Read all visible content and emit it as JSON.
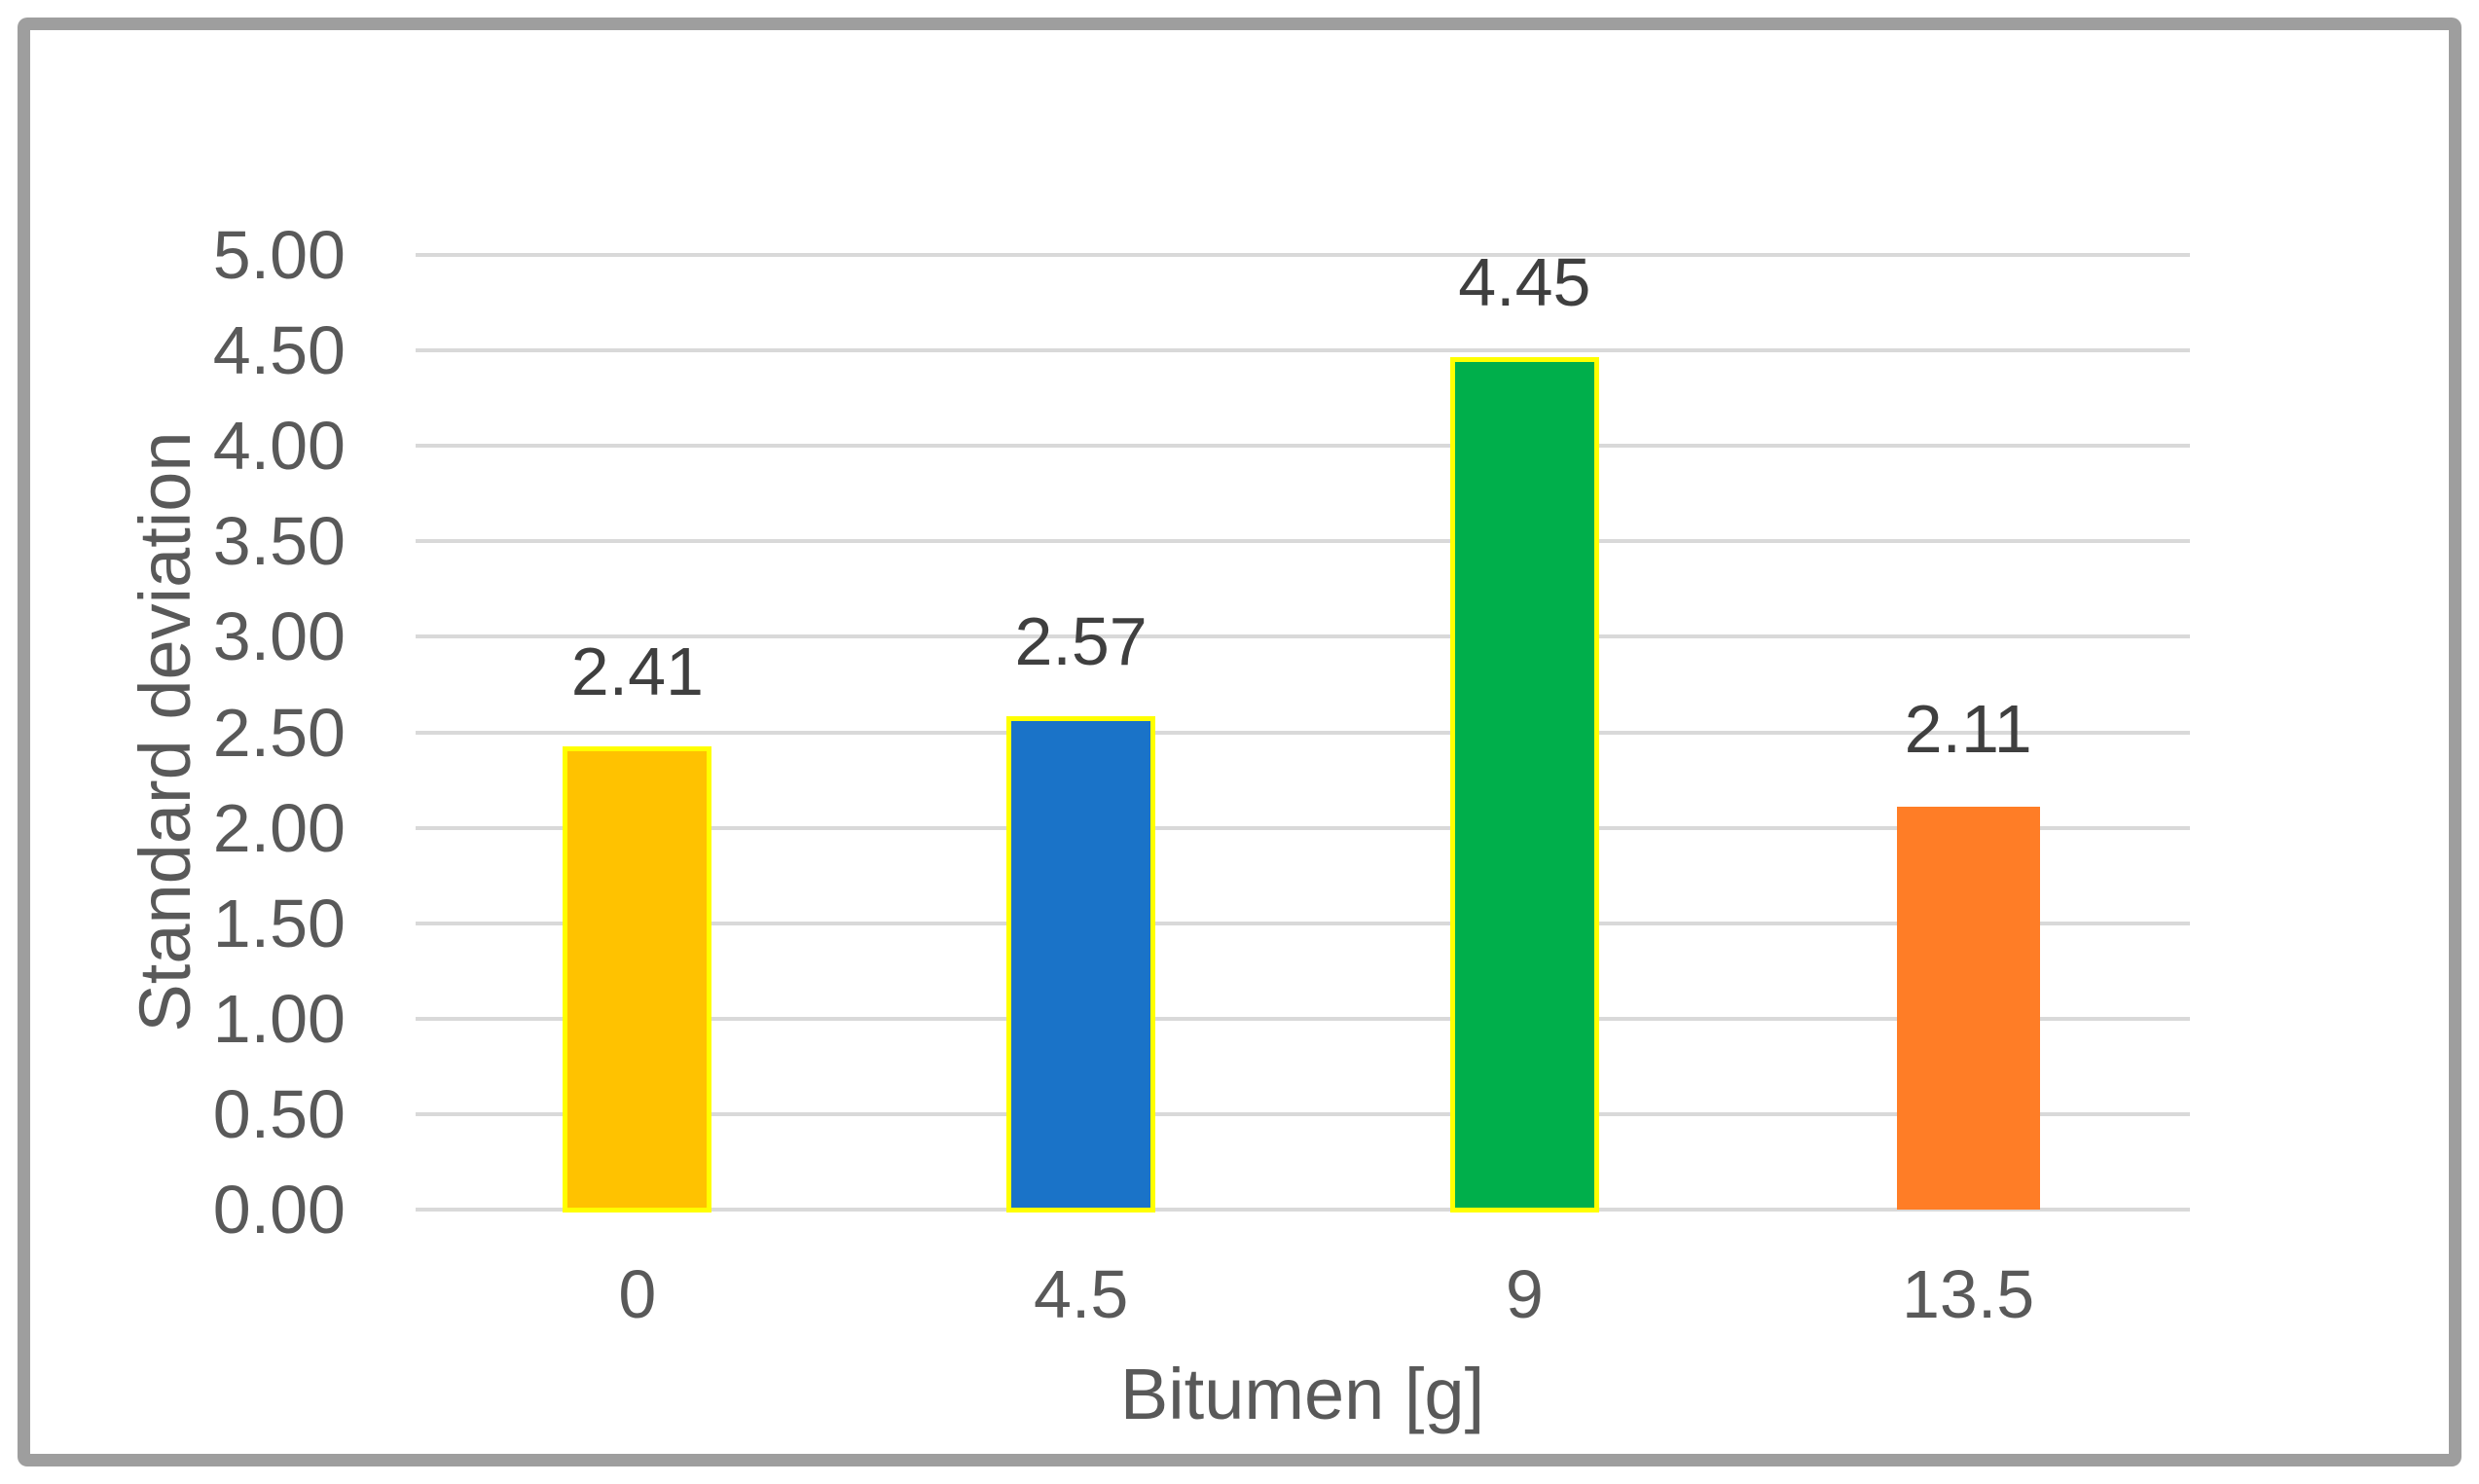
{
  "chart_data": {
    "type": "bar",
    "title": "",
    "categories": [
      "0",
      "4.5",
      "9",
      "13.5"
    ],
    "values": [
      2.41,
      2.57,
      4.45,
      2.11
    ],
    "data_labels": [
      "2.41",
      "2.57",
      "4.45",
      "2.11"
    ],
    "xlabel": "Bitumen [g]",
    "ylabel": "Standard deviation",
    "ylim": [
      0,
      5
    ],
    "ytick_interval": 0.5,
    "yticks": [
      "0.00",
      "0.50",
      "1.00",
      "1.50",
      "2.00",
      "2.50",
      "3.00",
      "3.50",
      "4.00",
      "4.50",
      "5.00"
    ],
    "ytick_values": [
      0,
      0.5,
      1,
      1.5,
      2,
      2.5,
      3,
      3.5,
      4,
      4.5,
      5
    ],
    "grid": true,
    "legend": false,
    "bar_fill_colors": [
      "#FFC200",
      "#1A73C8",
      "#00AF4B",
      "#FF7D26"
    ],
    "bar_outline_colors": [
      "#FFFF00",
      "#FFFF00",
      "#FFFF00",
      null
    ],
    "colors": {
      "gridline": "#D9D9D9",
      "axis_text": "#595959",
      "data_label_text": "#3F3F3F",
      "frame_border": "#9E9E9E",
      "background": "#FFFFFF"
    }
  }
}
